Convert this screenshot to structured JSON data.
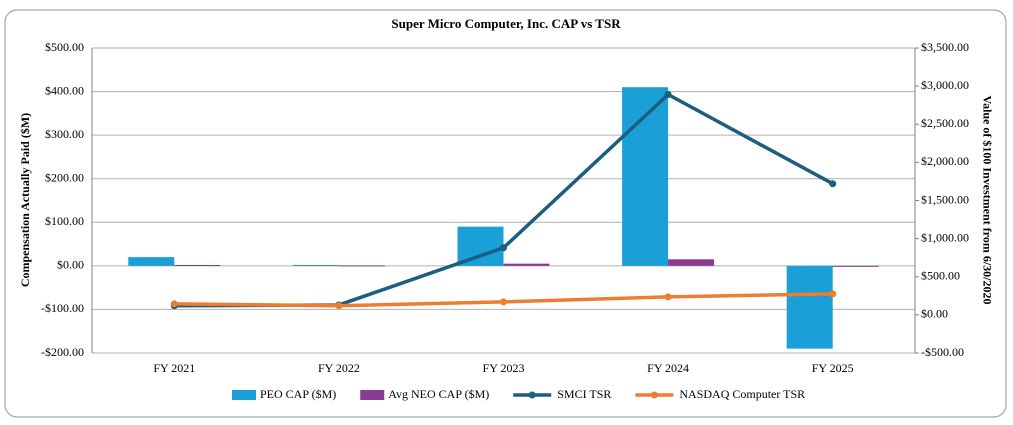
{
  "chart_data": {
    "type": "bar",
    "title": "Super Micro Computer, Inc. CAP vs TSR",
    "y_label": "Compensation Actually Paid ($M)",
    "y2_label": "Value of $100 Investment from 6/30/2020",
    "categories": [
      "FY 2021",
      "FY 2022",
      "FY 2023",
      "FY 2024",
      "FY 2025"
    ],
    "series": [
      {
        "name": "PEO CAP ($M)",
        "type": "bar",
        "color": "#1a9fd6",
        "values": [
          20,
          2,
          90,
          410,
          -190
        ]
      },
      {
        "name": "Avg NEO CAP ($M)",
        "type": "bar",
        "color": "#8b3a8f",
        "values": [
          2,
          1,
          5,
          15,
          -2
        ]
      },
      {
        "name": "SMCI TSR",
        "type": "line",
        "axis": "y2",
        "color": "#1b5e7e",
        "values": [
          120,
          130,
          880,
          2890,
          1720
        ]
      },
      {
        "name": "NASDAQ Computer TSR",
        "type": "line",
        "axis": "y2",
        "color": "#ed7d31",
        "values": [
          145,
          120,
          170,
          236,
          275
        ]
      }
    ],
    "ylim": [
      -200,
      500
    ],
    "yticks": [
      {
        "value": -200,
        "label": "-$200.00"
      },
      {
        "value": -100,
        "label": "-$100.00"
      },
      {
        "value": 0,
        "label": "$0.00"
      },
      {
        "value": 100,
        "label": "$100.00"
      },
      {
        "value": 200,
        "label": "$200.00"
      },
      {
        "value": 300,
        "label": "$300.00"
      },
      {
        "value": 400,
        "label": "$400.00"
      },
      {
        "value": 500,
        "label": "$500.00"
      }
    ],
    "y2lim": [
      -500,
      3500
    ],
    "y2ticks": [
      {
        "value": -500,
        "label": "-$500.00"
      },
      {
        "value": 0,
        "label": "$0.00"
      },
      {
        "value": 500,
        "label": "$500.00"
      },
      {
        "value": 1000,
        "label": "$1,000.00"
      },
      {
        "value": 1500,
        "label": "$1,500.00"
      },
      {
        "value": 2000,
        "label": "$2,000.00"
      },
      {
        "value": 2500,
        "label": "$2,500.00"
      },
      {
        "value": 3000,
        "label": "$3,000.00"
      },
      {
        "value": 3500,
        "label": "$3,500.00"
      }
    ],
    "grid": true,
    "legend": "bottom"
  }
}
